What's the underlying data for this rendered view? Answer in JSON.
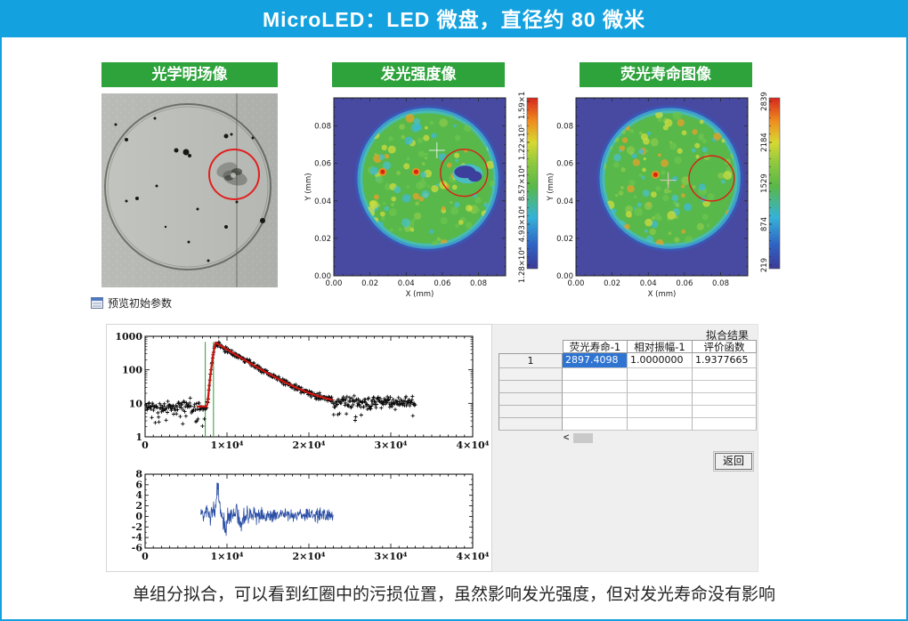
{
  "page": {
    "title": "MicroLED：LED 微盘，直径约 80 微米",
    "caption": "单组分拟合，可以看到红圈中的污损位置，虽然影响发光强度，但对发光寿命没有影响",
    "accent_blue": "#13a2df",
    "label_green": "#2ea33c"
  },
  "panels": [
    {
      "label": "光学明场像"
    },
    {
      "label": "发光强度像"
    },
    {
      "label": "荧光寿命图像"
    }
  ],
  "preview": {
    "label": "预览初始参数"
  },
  "results": {
    "title": "拟合结果",
    "columns": [
      "荧光寿命-1",
      "相对振幅-1",
      "评价函数"
    ],
    "row_index": "1",
    "row_values": [
      "2897.4098",
      "1.0000000",
      "1.9377665"
    ],
    "empty_rows": 5,
    "scroll_left": "<",
    "return_label": "返回",
    "selection_color": "#2f74d0"
  },
  "chart_data": [
    {
      "name": "emission-intensity-map",
      "type": "heatmap",
      "title": "发光强度像",
      "xlabel": "X (mm)",
      "ylabel": "Y (mm)",
      "x_ticks": [
        "0.00",
        "0.02",
        "0.04",
        "0.06",
        "0.08"
      ],
      "y_ticks": [
        "0.00",
        "0.02",
        "0.04",
        "0.06",
        "0.08"
      ],
      "x_range_mm": [
        0,
        0.095
      ],
      "y_range_mm": [
        0,
        0.095
      ],
      "colorbar_ticks": [
        "1.59×10⁵",
        "1.22×10⁵",
        "8.57×10⁴",
        "4.93×10⁴",
        "1.28×10⁴"
      ],
      "colormap": "rainbow",
      "disk_center_mm": [
        0.052,
        0.052
      ],
      "disk_radius_mm": 0.038,
      "defect_blob_mm": [
        0.074,
        0.0545
      ],
      "annotation_circle_mm": [
        0.072,
        0.055
      ],
      "annotation_circle_r_mm": 0.013,
      "crosshair_mm": [
        0.057,
        0.067
      ],
      "hot_spots_mm": [
        [
          0.0455,
          0.0555
        ],
        [
          0.027,
          0.0555
        ]
      ]
    },
    {
      "name": "lifetime-map",
      "type": "heatmap",
      "title": "荧光寿命图像",
      "xlabel": "X (mm)",
      "ylabel": "Y (mm)",
      "x_ticks": [
        "0.00",
        "0.02",
        "0.04",
        "0.06",
        "0.08"
      ],
      "y_ticks": [
        "0.00",
        "0.02",
        "0.04",
        "0.06",
        "0.08"
      ],
      "x_range_mm": [
        0,
        0.095
      ],
      "y_range_mm": [
        0,
        0.095
      ],
      "colorbar_ticks": [
        "2839",
        "2184",
        "1529",
        "874",
        "219"
      ],
      "colormap": "rainbow",
      "disk_center_mm": [
        0.052,
        0.052
      ],
      "disk_radius_mm": 0.038,
      "defect_blob_mm": null,
      "annotation_circle_mm": [
        0.075,
        0.052
      ],
      "annotation_circle_r_mm": 0.0125,
      "crosshair_mm": [
        0.051,
        0.051
      ],
      "hot_spots_mm": [
        [
          0.044,
          0.054
        ]
      ]
    },
    {
      "name": "decay-curve",
      "type": "line",
      "x_range": [
        0,
        40000
      ],
      "x_ticks": [
        "0",
        "1×10⁴",
        "2×10⁴",
        "3×10⁴",
        "4×10⁴"
      ],
      "y_scale": "log",
      "y_range": [
        1,
        1000
      ],
      "y_ticks": [
        "1",
        "10",
        "100",
        "1000"
      ],
      "series": [
        {
          "name": "measured",
          "style": "black-cross-markers",
          "baseline_level": 8,
          "peak_value": 650,
          "peak_x": 8600,
          "data_end_x": 33000
        },
        {
          "name": "single-exponential-fit",
          "style": "red-line",
          "tau": 2897.4098,
          "fit_start_x": 7450,
          "fit_end_x": 23000
        },
        {
          "name": "range-markers",
          "style": "green-vertical-lines",
          "x_positions": [
            7350,
            8350
          ]
        }
      ]
    },
    {
      "name": "fit-residuals",
      "type": "line",
      "x_range": [
        0,
        40000
      ],
      "x_ticks": [
        "0",
        "1×10⁴",
        "2×10⁴",
        "3×10⁴",
        "4×10⁴"
      ],
      "y_range": [
        -6,
        8
      ],
      "y_ticks": [
        "-6",
        "-4",
        "-2",
        "0",
        "2",
        "4",
        "6",
        "8"
      ],
      "series": [
        {
          "name": "residual",
          "style": "blue-line",
          "x_start": 6800,
          "x_end": 23000,
          "typical_range": [
            -3,
            3
          ],
          "spike": {
            "x": 8850,
            "y": 6
          }
        }
      ]
    },
    {
      "name": "optical-brightfield",
      "type": "image",
      "title": "光学明场像",
      "annotations": [
        "circular microdisk outline",
        "dark debris specks",
        "red circle marking smudge at upper right",
        "vertical scan line"
      ]
    }
  ]
}
